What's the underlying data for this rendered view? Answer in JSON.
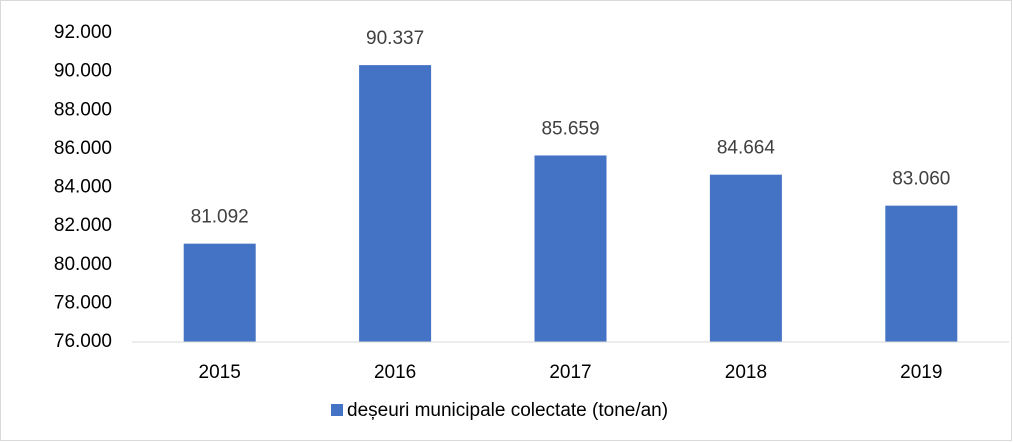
{
  "chart_data": {
    "type": "bar",
    "categories": [
      "2015",
      "2016",
      "2017",
      "2018",
      "2019"
    ],
    "series": [
      {
        "name": "deșeuri municipale colectate (tone/an)",
        "color": "#4472c4",
        "values": [
          81092,
          90337,
          85659,
          84664,
          83060
        ],
        "value_labels": [
          "81.092",
          "90.337",
          "85.659",
          "84.664",
          "83.060"
        ]
      }
    ],
    "ylim": [
      76000,
      92000
    ],
    "yticks": [
      {
        "value": 76000,
        "label": "76.000"
      },
      {
        "value": 78000,
        "label": "78.000"
      },
      {
        "value": 80000,
        "label": "80.000"
      },
      {
        "value": 82000,
        "label": "82.000"
      },
      {
        "value": 84000,
        "label": "84.000"
      },
      {
        "value": 86000,
        "label": "86.000"
      },
      {
        "value": 88000,
        "label": "88.000"
      },
      {
        "value": 90000,
        "label": "90.000"
      },
      {
        "value": 92000,
        "label": "92.000"
      }
    ],
    "grid": false,
    "legend": "bottom"
  }
}
